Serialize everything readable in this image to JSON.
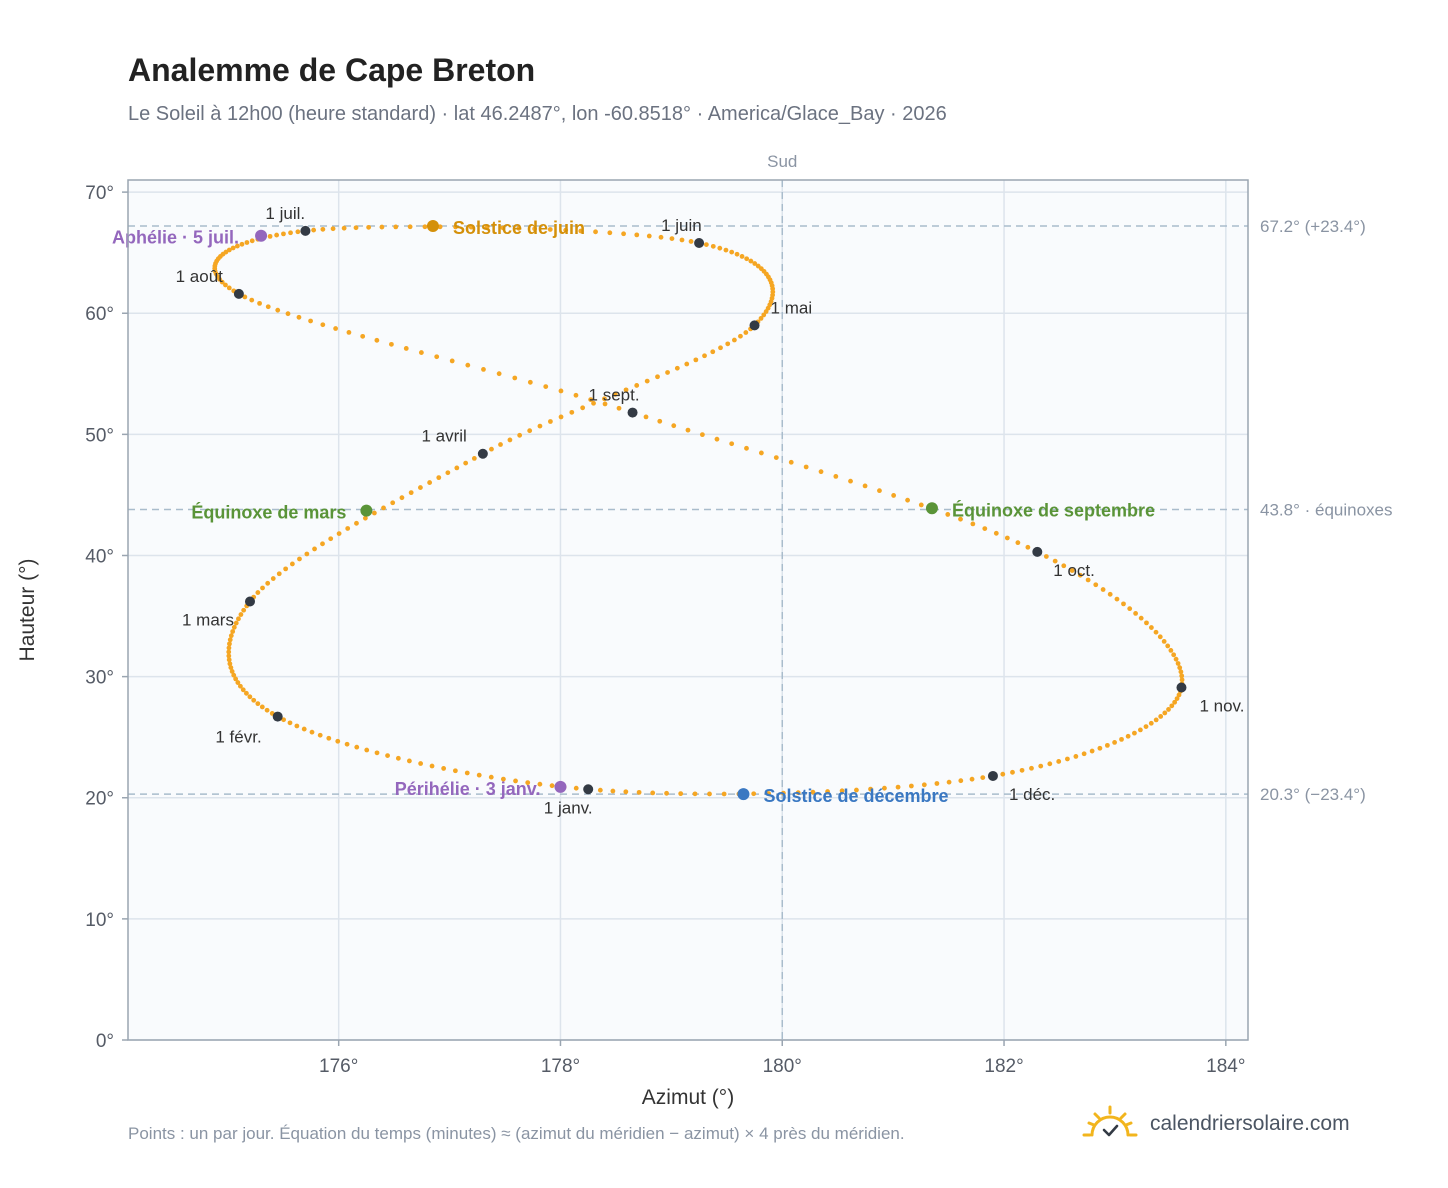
{
  "page": {
    "title": "Analemme de Cape Breton",
    "subtitle": "Le Soleil à 12h00 (heure standard) · lat 46.2487°, lon -60.8518° · America/Glace_Bay · 2026",
    "footnote": "Points : un par jour. Équation du temps (minutes) ≈ (azimut du méridien − azimut) × 4 près du méridien.",
    "brand": "calendriersolaire.com",
    "brand_icon": "sun-check-icon"
  },
  "colors": {
    "curve": "#f5a623",
    "month_point": "#333a44",
    "solstice_june": "#d4900a",
    "solstice_december": "#3a78c2",
    "equinox": "#5a9438",
    "perihelion_aphelion": "#9467bd",
    "grid": "#dde4ec",
    "reference_line": "#a9bccc",
    "plot_background": "#f9fbfd",
    "axis": "#9aa5b1"
  },
  "chart_data": {
    "type": "scatter",
    "title": "Analemme de Cape Breton",
    "xlabel": "Azimut (°)",
    "ylabel": "Hauteur (°)",
    "xlim": [
      174.1,
      184.2
    ],
    "ylim": [
      0,
      71
    ],
    "x_ticks": [
      176,
      178,
      180,
      182,
      184
    ],
    "x_tick_labels": [
      "176°",
      "178°",
      "180°",
      "182°",
      "184°"
    ],
    "y_ticks": [
      0,
      10,
      20,
      30,
      40,
      50,
      60,
      70
    ],
    "y_tick_labels": [
      "0°",
      "10°",
      "20°",
      "30°",
      "40°",
      "50°",
      "60°",
      "70°"
    ],
    "grid": true,
    "meridian": {
      "azimuth": 180,
      "label": "Sud"
    },
    "reference_lines": [
      {
        "altitude": 67.2,
        "label": "67.2° (+23.4°)"
      },
      {
        "altitude": 43.8,
        "label": "43.8° · équinoxes"
      },
      {
        "altitude": 20.3,
        "label": "20.3° (−23.4°)"
      }
    ],
    "month_points": [
      {
        "label": "1 janv.",
        "azimuth": 178.25,
        "altitude": 20.7
      },
      {
        "label": "1 févr.",
        "azimuth": 175.45,
        "altitude": 26.7
      },
      {
        "label": "1 mars",
        "azimuth": 175.2,
        "altitude": 36.2
      },
      {
        "label": "1 avril",
        "azimuth": 177.3,
        "altitude": 48.4
      },
      {
        "label": "1 mai",
        "azimuth": 179.75,
        "altitude": 59.0
      },
      {
        "label": "1 juin",
        "azimuth": 179.25,
        "altitude": 65.8
      },
      {
        "label": "1 juil.",
        "azimuth": 175.7,
        "altitude": 66.8
      },
      {
        "label": "1 août",
        "azimuth": 175.1,
        "altitude": 61.6
      },
      {
        "label": "1 sept.",
        "azimuth": 178.65,
        "altitude": 51.8
      },
      {
        "label": "1 oct.",
        "azimuth": 182.3,
        "altitude": 40.3
      },
      {
        "label": "1 nov.",
        "azimuth": 183.6,
        "altitude": 29.1
      },
      {
        "label": "1 déc.",
        "azimuth": 181.9,
        "altitude": 21.8
      }
    ],
    "events": [
      {
        "label": "Solstice de juin",
        "azimuth": 176.85,
        "altitude": 67.2,
        "color_key": "solstice_june"
      },
      {
        "label": "Solstice de décembre",
        "azimuth": 179.65,
        "altitude": 20.3,
        "color_key": "solstice_december"
      },
      {
        "label": "Équinoxe de mars",
        "azimuth": 176.25,
        "altitude": 43.7,
        "color_key": "equinox"
      },
      {
        "label": "Équinoxe de septembre",
        "azimuth": 181.35,
        "altitude": 43.9,
        "color_key": "equinox"
      },
      {
        "label": "Aphélie · 5 juil.",
        "azimuth": 175.3,
        "altitude": 66.4,
        "color_key": "perihelion_aphelion"
      },
      {
        "label": "Périhélie · 3 janv.",
        "azimuth": 178.0,
        "altitude": 20.9,
        "color_key": "perihelion_aphelion"
      }
    ],
    "series": [
      {
        "type": "daily_points",
        "count": 365,
        "year": 2026
      }
    ]
  }
}
